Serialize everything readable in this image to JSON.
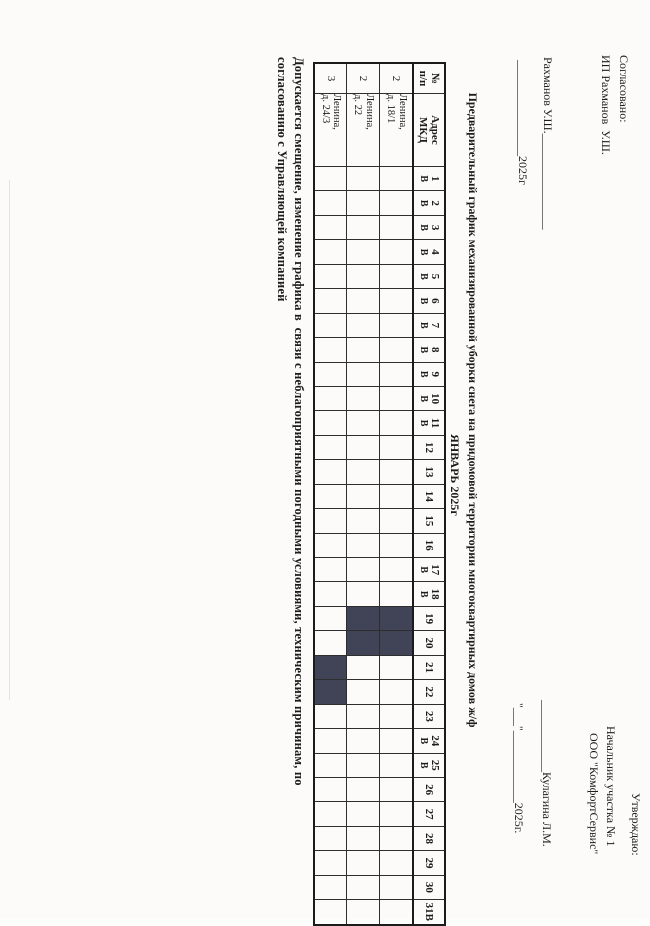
{
  "document": {
    "approved_left": {
      "line1": "Согласовано:",
      "line2": "ИП Рахманов  У.Ш.",
      "signature_line": "Рахманов У.Ш.________________",
      "date_line": "________________2025г"
    },
    "approved_right": {
      "line1": "Утверждаю:",
      "line2": "Начальник участка № 1",
      "line3": "ООО \"КомфортСервис\"",
      "signature_line": "____________Кулагина Л.М.",
      "date_line": "\"___\"____________2025г."
    },
    "title": {
      "line1": "Предварительный график механизированной уборки снега на придомовой территории многоквартирных домов ж/ф",
      "line2": "ЯНВАРЬ 2025г"
    },
    "note": {
      "line1": "Допускается смещение, изменение графика в  связи с неблагоприятными погодными условиями, техническим причинам, по",
      "line2": "согласованию с Управляющей компанией"
    }
  },
  "table": {
    "headers": {
      "num_lines": [
        "№",
        "п/п"
      ],
      "address_lines": [
        "Адрес",
        "МКД"
      ]
    },
    "weekend_mark": "В",
    "weekend_days": [
      1,
      2,
      3,
      4,
      5,
      6,
      7,
      8,
      9,
      10,
      11,
      17,
      18,
      24,
      25
    ],
    "day_labels": [
      "1",
      "2",
      "3",
      "4",
      "5",
      "6",
      "7",
      "8",
      "9",
      "10",
      "11",
      "12",
      "13",
      "14",
      "15",
      "16",
      "17",
      "18",
      "19",
      "20",
      "21",
      "22",
      "23",
      "24",
      "25",
      "26",
      "27",
      "28",
      "29",
      "30",
      "31В"
    ],
    "rows": [
      {
        "num": "2",
        "address_lines": [
          "Ленина,",
          "д. 18/1"
        ],
        "shaded_days": [
          19,
          20
        ]
      },
      {
        "num": "2",
        "address_lines": [
          "Ленина,",
          "д. 22"
        ],
        "shaded_days": [
          19,
          20
        ]
      },
      {
        "num": "3",
        "address_lines": [
          "Ленина,",
          "д. 24/3"
        ],
        "shaded_days": [
          21,
          22
        ]
      }
    ],
    "shade_color": "#414456"
  }
}
